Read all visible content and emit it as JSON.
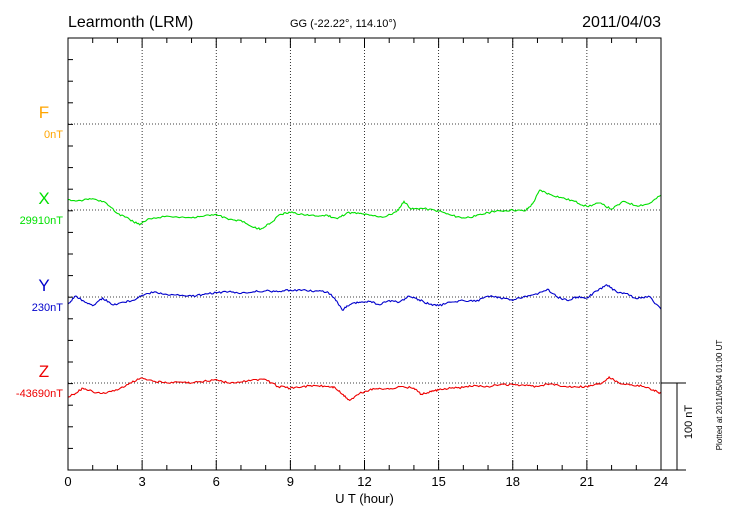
{
  "header": {
    "station": "Learmonth (LRM)",
    "coords": "GG (-22.22°, 114.10°)",
    "date": "2011/04/03"
  },
  "footer": {
    "plotted_note": "Plotted at 2011/05/04 01:00 UT",
    "scale_label": "100 nT"
  },
  "chart_data": {
    "type": "line",
    "title": "Learmonth (LRM)",
    "xlabel": "U T (hour)",
    "ylabel": "",
    "xlim": [
      0,
      24
    ],
    "x_ticks": [
      "0",
      "3",
      "6",
      "9",
      "12",
      "15",
      "18",
      "21",
      "24"
    ],
    "grid": true,
    "units": "nT",
    "scale_bar_nT": 100,
    "series": [
      {
        "name": "F",
        "baseline_label": "0nT",
        "baseline_nT": 0,
        "color": "#ffa500",
        "x": [],
        "y": []
      },
      {
        "name": "X",
        "baseline_label": "29910nT",
        "baseline_nT": 29910,
        "color": "#00e000",
        "x": [
          0,
          0.5,
          1.0,
          1.5,
          2.0,
          2.5,
          2.9,
          3.3,
          4.0,
          5.0,
          5.5,
          6.0,
          6.5,
          7.0,
          7.5,
          7.8,
          8.2,
          8.6,
          9.0,
          9.5,
          10.0,
          10.5,
          10.9,
          11.3,
          11.8,
          12.2,
          12.8,
          13.3,
          13.6,
          13.9,
          14.3,
          15.0,
          15.5,
          16.0,
          16.5,
          17.0,
          17.5,
          18.0,
          18.5,
          18.8,
          19.1,
          19.5,
          20.0,
          20.5,
          21.0,
          21.5,
          22.0,
          22.5,
          23.0,
          23.5,
          24.0
        ],
        "y": [
          29922,
          29921,
          29923,
          29919,
          29906,
          29899,
          29893,
          29900,
          29903,
          29901,
          29903,
          29905,
          29899,
          29898,
          29890,
          29888,
          29895,
          29905,
          29907,
          29905,
          29903,
          29904,
          29900,
          29907,
          29906,
          29904,
          29902,
          29908,
          29920,
          29911,
          29912,
          29909,
          29904,
          29901,
          29903,
          29907,
          29909,
          29910,
          29909,
          29917,
          29933,
          29928,
          29924,
          29920,
          29914,
          29918,
          29911,
          29920,
          29915,
          29917,
          29927
        ]
      },
      {
        "name": "Y",
        "baseline_label": "230nT",
        "baseline_nT": 230,
        "color": "#0000cc",
        "x": [
          0,
          0.3,
          0.6,
          1.0,
          1.4,
          1.8,
          2.2,
          2.6,
          3.0,
          3.5,
          4.0,
          4.5,
          5.0,
          5.5,
          6.0,
          6.5,
          7.0,
          7.5,
          8.0,
          8.5,
          9.0,
          9.5,
          10.0,
          10.5,
          10.8,
          11.1,
          11.4,
          11.8,
          12.2,
          12.6,
          13.0,
          13.4,
          13.8,
          14.2,
          14.6,
          15.0,
          15.5,
          16.0,
          16.5,
          17.0,
          17.5,
          18.0,
          18.5,
          19.0,
          19.4,
          19.8,
          20.2,
          20.6,
          21.0,
          21.4,
          21.8,
          22.2,
          22.6,
          23.0,
          23.5,
          24.0
        ],
        "y": [
          222,
          231,
          226,
          220,
          229,
          221,
          224,
          226,
          232,
          236,
          233,
          232,
          231,
          233,
          235,
          236,
          234,
          236,
          237,
          236,
          238,
          238,
          237,
          236,
          228,
          215,
          221,
          224,
          225,
          221,
          226,
          224,
          231,
          227,
          222,
          220,
          224,
          226,
          225,
          231,
          229,
          226,
          231,
          233,
          239,
          230,
          226,
          230,
          229,
          237,
          244,
          236,
          234,
          228,
          231,
          216
        ]
      },
      {
        "name": "Z",
        "baseline_label": "-43690nT",
        "baseline_nT": -43690,
        "color": "#ee0000",
        "x": [
          0,
          0.3,
          0.6,
          1.0,
          1.5,
          2.0,
          2.5,
          3.0,
          3.5,
          4.0,
          4.5,
          5.0,
          5.5,
          6.0,
          6.5,
          7.0,
          7.5,
          8.0,
          8.5,
          9.0,
          9.5,
          10.0,
          10.5,
          10.8,
          11.1,
          11.4,
          11.8,
          12.2,
          12.6,
          13.0,
          13.5,
          14.0,
          14.3,
          14.7,
          15.0,
          15.5,
          16.0,
          16.5,
          17.0,
          17.5,
          18.0,
          18.5,
          19.0,
          19.5,
          20.0,
          20.5,
          21.0,
          21.3,
          21.6,
          21.9,
          22.3,
          22.8,
          23.3,
          23.7,
          24.0
        ],
        "y": [
          -43706,
          -43702,
          -43696,
          -43700,
          -43702,
          -43698,
          -43690,
          -43684,
          -43688,
          -43690,
          -43689,
          -43690,
          -43688,
          -43686,
          -43690,
          -43689,
          -43686,
          -43686,
          -43694,
          -43696,
          -43694,
          -43693,
          -43694,
          -43695,
          -43703,
          -43710,
          -43702,
          -43698,
          -43696,
          -43697,
          -43694,
          -43696,
          -43703,
          -43700,
          -43698,
          -43696,
          -43695,
          -43693,
          -43694,
          -43692,
          -43692,
          -43693,
          -43694,
          -43691,
          -43694,
          -43694,
          -43694,
          -43692,
          -43690,
          -43683,
          -43690,
          -43692,
          -43694,
          -43698,
          -43702
        ]
      }
    ]
  }
}
